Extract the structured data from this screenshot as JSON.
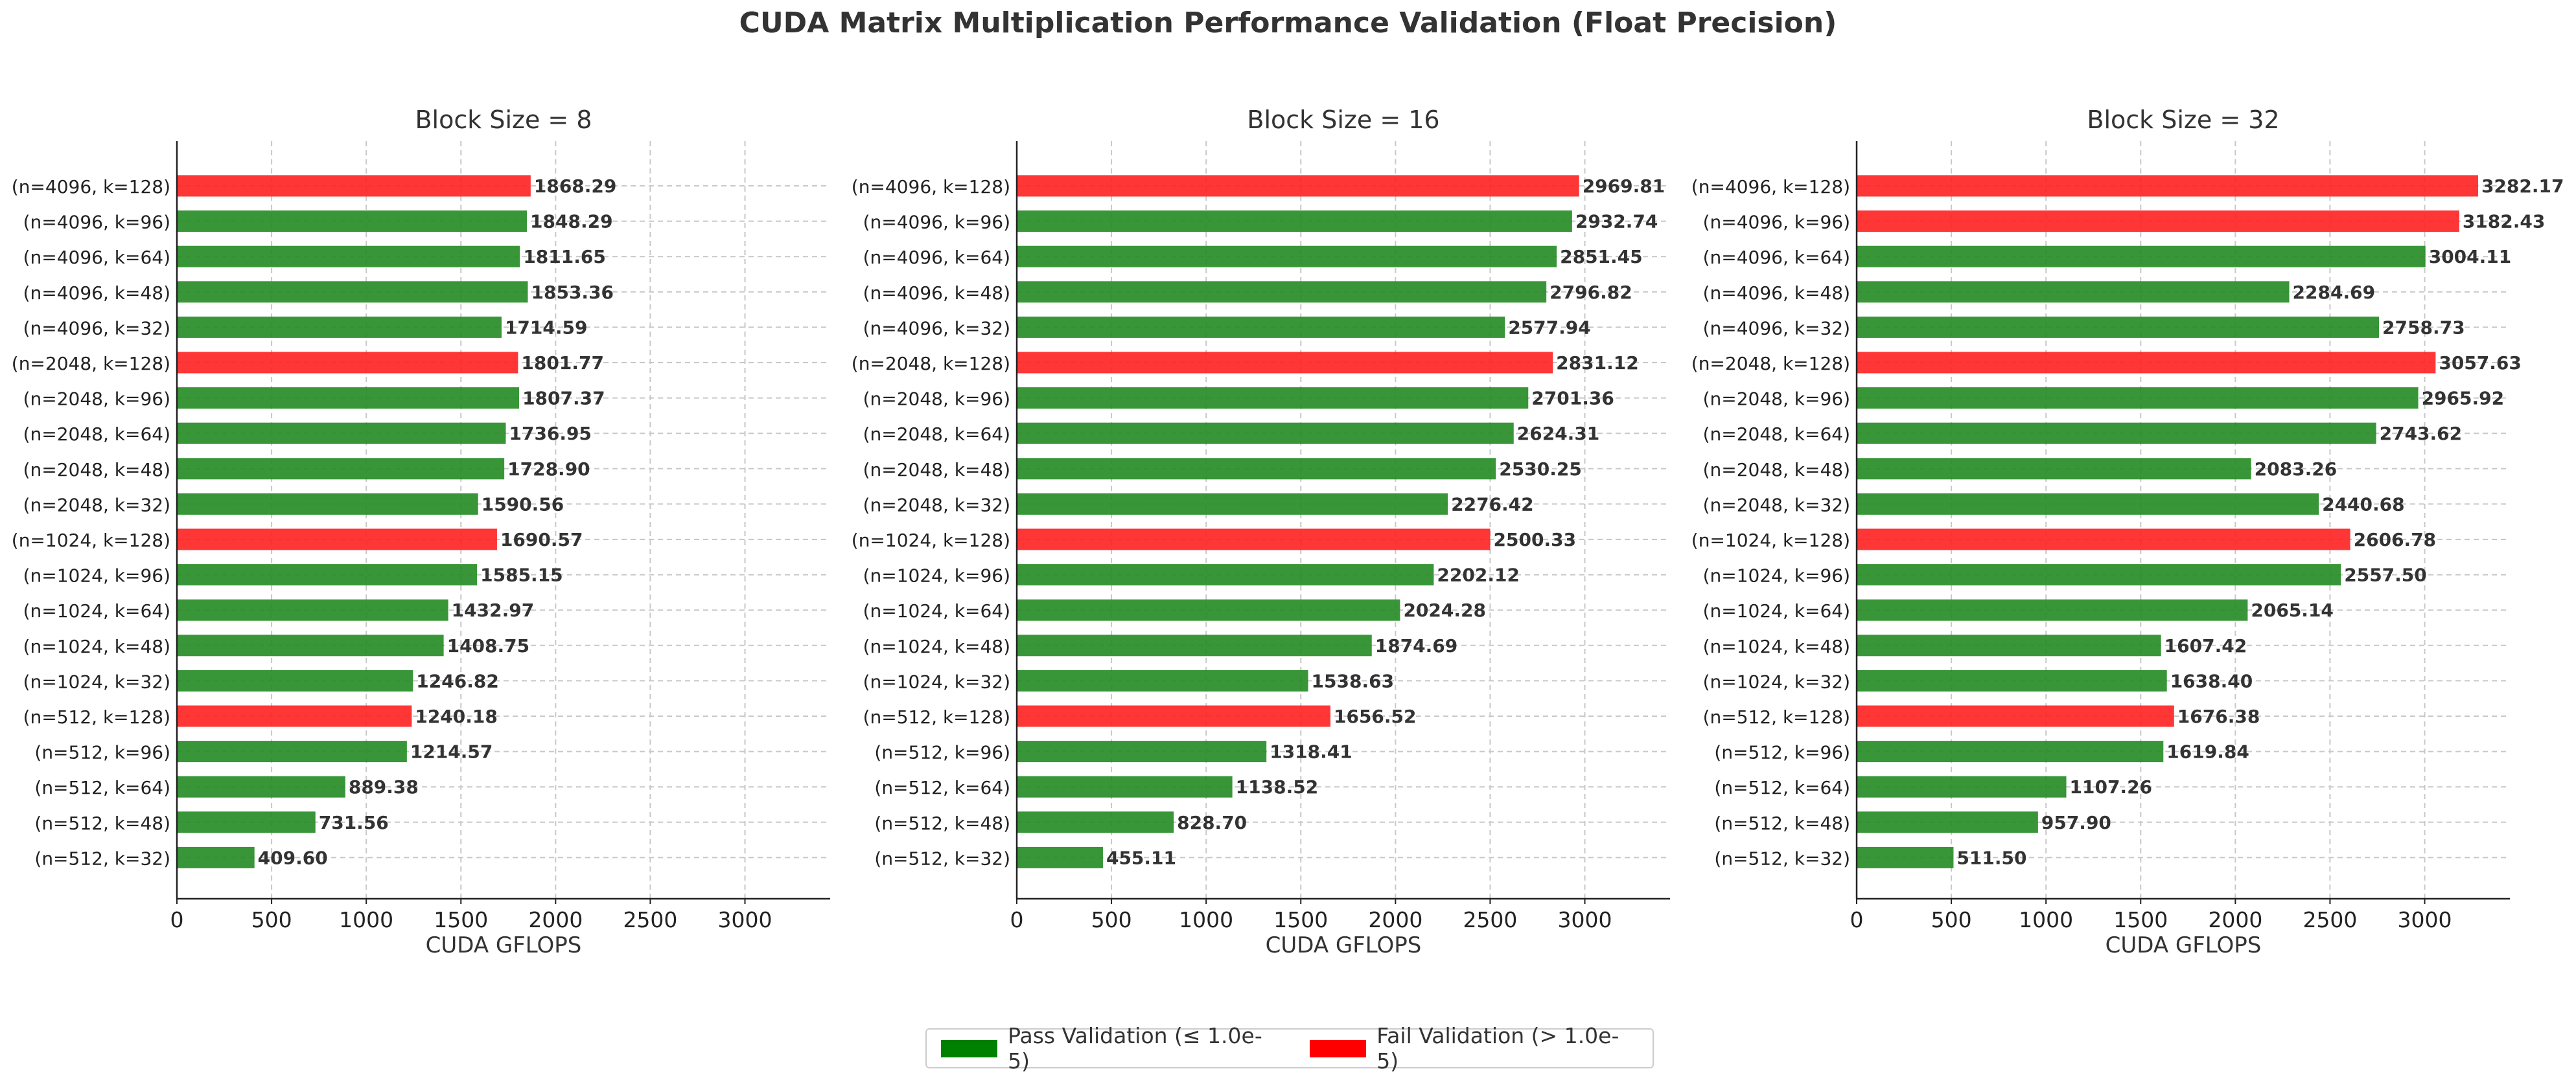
{
  "title": "CUDA Matrix Multiplication Performance Validation (Float Precision)",
  "colors": {
    "pass": "#228B22",
    "fail": "#FF2020",
    "legend_pass": "#008000",
    "legend_fail": "#FF0000"
  },
  "legend": {
    "placement": "bottom-center",
    "items": [
      {
        "label": "Pass Validation (≤ 1.0e-5)",
        "status": "pass"
      },
      {
        "label": "Fail Validation (> 1.0e-5)",
        "status": "fail"
      }
    ]
  },
  "chart_data": [
    {
      "type": "bar",
      "orientation": "horizontal",
      "title": "Block Size = 8",
      "xlabel": "CUDA GFLOPS",
      "xlim": [
        0,
        3450
      ],
      "xticks": [
        0,
        500,
        1000,
        1500,
        2000,
        2500,
        3000
      ],
      "grid": true,
      "categories": [
        "(n=4096, k=128)",
        "(n=4096, k=96)",
        "(n=4096, k=64)",
        "(n=4096, k=48)",
        "(n=4096, k=32)",
        "(n=2048, k=128)",
        "(n=2048, k=96)",
        "(n=2048, k=64)",
        "(n=2048, k=48)",
        "(n=2048, k=32)",
        "(n=1024, k=128)",
        "(n=1024, k=96)",
        "(n=1024, k=64)",
        "(n=1024, k=48)",
        "(n=1024, k=32)",
        "(n=512, k=128)",
        "(n=512, k=96)",
        "(n=512, k=64)",
        "(n=512, k=48)",
        "(n=512, k=32)"
      ],
      "values": [
        1868.29,
        1848.29,
        1811.65,
        1853.36,
        1714.59,
        1801.77,
        1807.37,
        1736.95,
        1728.9,
        1590.56,
        1690.57,
        1585.15,
        1432.97,
        1408.75,
        1246.82,
        1240.18,
        1214.57,
        889.38,
        731.56,
        409.6
      ],
      "labels": [
        "1868.29",
        "1848.29",
        "1811.65",
        "1853.36",
        "1714.59",
        "1801.77",
        "1807.37",
        "1736.95",
        "1728.90",
        "1590.56",
        "1690.57",
        "1585.15",
        "1432.97",
        "1408.75",
        "1246.82",
        "1240.18",
        "1214.57",
        "889.38",
        "731.56",
        "409.60"
      ],
      "status": [
        "fail",
        "pass",
        "pass",
        "pass",
        "pass",
        "fail",
        "pass",
        "pass",
        "pass",
        "pass",
        "fail",
        "pass",
        "pass",
        "pass",
        "pass",
        "fail",
        "pass",
        "pass",
        "pass",
        "pass"
      ]
    },
    {
      "type": "bar",
      "orientation": "horizontal",
      "title": "Block Size = 16",
      "xlabel": "CUDA GFLOPS",
      "xlim": [
        0,
        3450
      ],
      "xticks": [
        0,
        500,
        1000,
        1500,
        2000,
        2500,
        3000
      ],
      "grid": true,
      "categories": [
        "(n=4096, k=128)",
        "(n=4096, k=96)",
        "(n=4096, k=64)",
        "(n=4096, k=48)",
        "(n=4096, k=32)",
        "(n=2048, k=128)",
        "(n=2048, k=96)",
        "(n=2048, k=64)",
        "(n=2048, k=48)",
        "(n=2048, k=32)",
        "(n=1024, k=128)",
        "(n=1024, k=96)",
        "(n=1024, k=64)",
        "(n=1024, k=48)",
        "(n=1024, k=32)",
        "(n=512, k=128)",
        "(n=512, k=96)",
        "(n=512, k=64)",
        "(n=512, k=48)",
        "(n=512, k=32)"
      ],
      "values": [
        2969.81,
        2932.74,
        2851.45,
        2796.82,
        2577.94,
        2831.12,
        2701.36,
        2624.31,
        2530.25,
        2276.42,
        2500.33,
        2202.12,
        2024.28,
        1874.69,
        1538.63,
        1656.52,
        1318.41,
        1138.52,
        828.7,
        455.11
      ],
      "labels": [
        "2969.81",
        "2932.74",
        "2851.45",
        "2796.82",
        "2577.94",
        "2831.12",
        "2701.36",
        "2624.31",
        "2530.25",
        "2276.42",
        "2500.33",
        "2202.12",
        "2024.28",
        "1874.69",
        "1538.63",
        "1656.52",
        "1318.41",
        "1138.52",
        "828.70",
        "455.11"
      ],
      "status": [
        "fail",
        "pass",
        "pass",
        "pass",
        "pass",
        "fail",
        "pass",
        "pass",
        "pass",
        "pass",
        "fail",
        "pass",
        "pass",
        "pass",
        "pass",
        "fail",
        "pass",
        "pass",
        "pass",
        "pass"
      ]
    },
    {
      "type": "bar",
      "orientation": "horizontal",
      "title": "Block Size = 32",
      "xlabel": "CUDA GFLOPS",
      "xlim": [
        0,
        3450
      ],
      "xticks": [
        0,
        500,
        1000,
        1500,
        2000,
        2500,
        3000
      ],
      "grid": true,
      "categories": [
        "(n=4096, k=128)",
        "(n=4096, k=96)",
        "(n=4096, k=64)",
        "(n=4096, k=48)",
        "(n=4096, k=32)",
        "(n=2048, k=128)",
        "(n=2048, k=96)",
        "(n=2048, k=64)",
        "(n=2048, k=48)",
        "(n=2048, k=32)",
        "(n=1024, k=128)",
        "(n=1024, k=96)",
        "(n=1024, k=64)",
        "(n=1024, k=48)",
        "(n=1024, k=32)",
        "(n=512, k=128)",
        "(n=512, k=96)",
        "(n=512, k=64)",
        "(n=512, k=48)",
        "(n=512, k=32)"
      ],
      "values": [
        3282.17,
        3182.43,
        3004.11,
        2284.69,
        2758.73,
        3057.63,
        2965.92,
        2743.62,
        2083.26,
        2440.68,
        2606.78,
        2557.5,
        2065.14,
        1607.42,
        1638.4,
        1676.38,
        1619.84,
        1107.26,
        957.9,
        511.5
      ],
      "labels": [
        "3282.17",
        "3182.43",
        "3004.11",
        "2284.69",
        "2758.73",
        "3057.63",
        "2965.92",
        "2743.62",
        "2083.26",
        "2440.68",
        "2606.78",
        "2557.50",
        "2065.14",
        "1607.42",
        "1638.40",
        "1676.38",
        "1619.84",
        "1107.26",
        "957.90",
        "511.50"
      ],
      "status": [
        "fail",
        "fail",
        "pass",
        "pass",
        "pass",
        "fail",
        "pass",
        "pass",
        "pass",
        "pass",
        "fail",
        "pass",
        "pass",
        "pass",
        "pass",
        "fail",
        "pass",
        "pass",
        "pass",
        "pass"
      ]
    }
  ]
}
